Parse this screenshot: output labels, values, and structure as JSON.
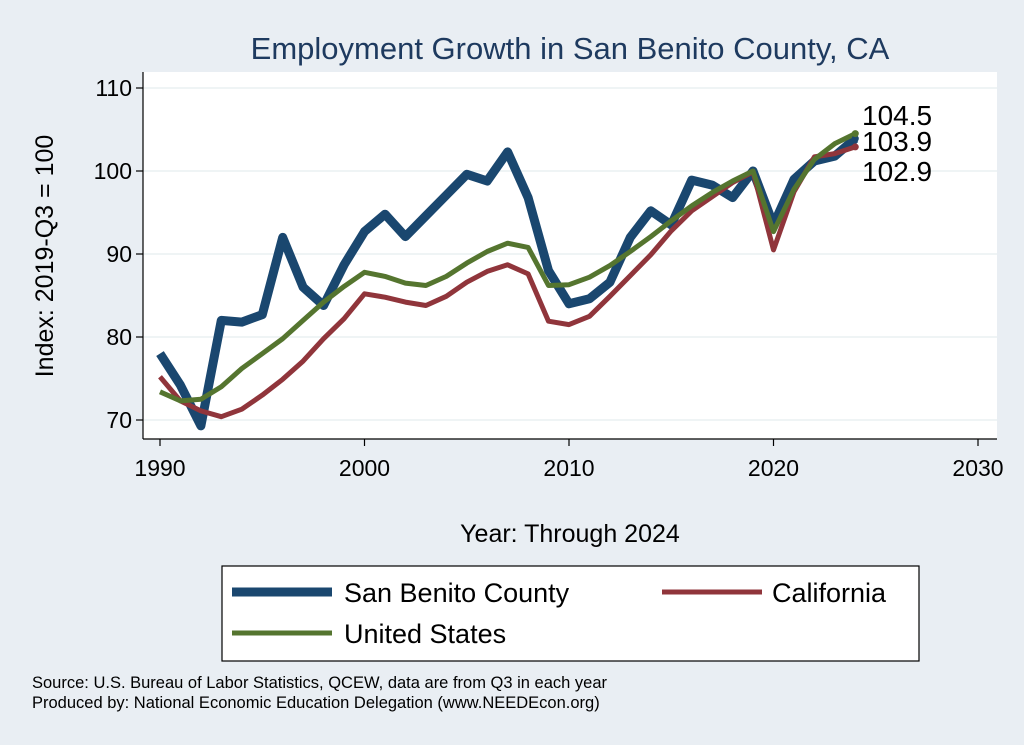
{
  "chart_data": {
    "type": "line",
    "title": "Employment Growth in San Benito County, CA",
    "xlabel": "Year: Through 2024",
    "ylabel": "Index: 2019-Q3 = 100",
    "xlim": [
      1990,
      2030
    ],
    "ylim": [
      70,
      110
    ],
    "xticks": [
      "1990",
      "2000",
      "2010",
      "2020",
      "2030"
    ],
    "yticks": [
      "70",
      "80",
      "90",
      "100",
      "110"
    ],
    "x": [
      1990,
      1991,
      1992,
      1993,
      1994,
      1995,
      1996,
      1997,
      1998,
      1999,
      2000,
      2001,
      2002,
      2003,
      2004,
      2005,
      2006,
      2007,
      2008,
      2009,
      2010,
      2011,
      2012,
      2013,
      2014,
      2015,
      2016,
      2017,
      2018,
      2019,
      2020,
      2021,
      2022,
      2023,
      2024
    ],
    "series": [
      {
        "name": "San Benito  County",
        "color": "#1a476f",
        "values": [
          78,
          74.2,
          69.3,
          82,
          81.8,
          82.7,
          92,
          86,
          83.8,
          88.7,
          92.7,
          94.8,
          92.1,
          94.6,
          97.1,
          99.6,
          98.8,
          102.3,
          96.8,
          88,
          84,
          84.6,
          86.6,
          92,
          95.2,
          93.5,
          98.9,
          98.3,
          96.8,
          100,
          93.5,
          99,
          101.2,
          101.8,
          103.9
        ]
      },
      {
        "name": "California",
        "color": "#90353b",
        "values": [
          75.2,
          72.3,
          71.1,
          70.4,
          71.3,
          73,
          74.9,
          77.1,
          79.8,
          82.2,
          85.2,
          84.8,
          84.2,
          83.8,
          84.9,
          86.6,
          87.9,
          88.7,
          87.6,
          81.9,
          81.5,
          82.5,
          84.9,
          87.4,
          89.9,
          92.8,
          95.2,
          96.9,
          98.6,
          99.9,
          90.5,
          97.5,
          101.7,
          102.1,
          102.9
        ]
      },
      {
        "name": "United States",
        "color": "#55752f",
        "values": [
          73.4,
          72.3,
          72.5,
          74,
          76.2,
          78,
          79.8,
          82,
          84.2,
          86.1,
          87.8,
          87.3,
          86.5,
          86.2,
          87.3,
          88.9,
          90.3,
          91.3,
          90.8,
          86.2,
          86.3,
          87.2,
          88.6,
          90.3,
          92.1,
          94,
          95.8,
          97.4,
          98.8,
          100,
          92.7,
          97.8,
          101.4,
          103.3,
          104.5
        ]
      }
    ],
    "end_labels": [
      "104.5",
      "103.9",
      "102.9"
    ],
    "legend": {
      "position": "bottom"
    },
    "grid": true
  },
  "footer": {
    "source": "Source: U.S. Bureau of Labor Statistics, QCEW, data are from Q3 in each year",
    "produced": "Produced by: National Economic Education Delegation (www.NEEDEcon.org)"
  }
}
